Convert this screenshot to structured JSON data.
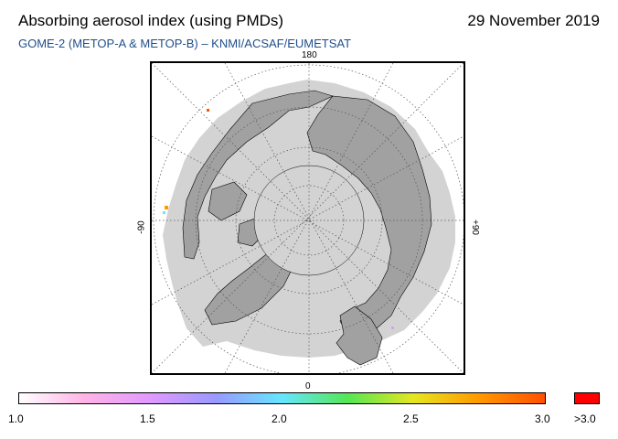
{
  "header": {
    "title": "Absorbing aerosol index (using PMDs)",
    "date": "29 November 2019",
    "subtitle": "GOME-2 (METOP-A & METOP-B)  –  KNMI/ACSAF/EUMETSAT"
  },
  "map": {
    "projection": "polar stereographic, north pole centered",
    "longitude_labels": {
      "top": "180",
      "bottom": "0",
      "left": "-90",
      "right": "+90"
    },
    "colors": {
      "data_coverage": "#d3d3d3",
      "land": "#a1a1a1",
      "graticule": "#555555",
      "coastline": "#000000"
    }
  },
  "legend": {
    "tick_labels": [
      "1.0",
      "1.5",
      "2.0",
      "2.5",
      "3.0"
    ],
    "over_label": ">3.0",
    "range": [
      1.0,
      3.0
    ],
    "gradient_colors": [
      "#ffffff",
      "#ffb3e6",
      "#e099ff",
      "#9999ff",
      "#66e6ff",
      "#55e655",
      "#e6e620",
      "#ff9900",
      "#ff5000"
    ],
    "over_color": "#ff0000"
  }
}
